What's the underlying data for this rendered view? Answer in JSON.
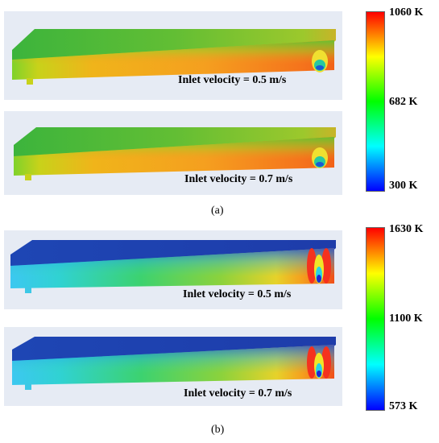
{
  "figure_a": {
    "caption": "(a)",
    "panels": [
      {
        "label": "Inlet velocity = 0.5 m/s"
      },
      {
        "label": "Inlet velocity = 0.7 m/s"
      }
    ],
    "colorbar": {
      "max_label": "1060 K",
      "mid_label": "682 K",
      "min_label": "300 K",
      "colors": [
        "#0000ff",
        "#00ffff",
        "#00ff00",
        "#ffff00",
        "#ff0000"
      ]
    }
  },
  "figure_b": {
    "caption": "(b)",
    "panels": [
      {
        "label": "Inlet velocity = 0.5 m/s"
      },
      {
        "label": "Inlet velocity = 0.7 m/s"
      }
    ],
    "colorbar": {
      "max_label": "1630 K",
      "mid_label": "1100 K",
      "min_label": "573 K",
      "colors": [
        "#0000ff",
        "#00ffff",
        "#00ff00",
        "#ffff00",
        "#ff0000"
      ]
    }
  }
}
